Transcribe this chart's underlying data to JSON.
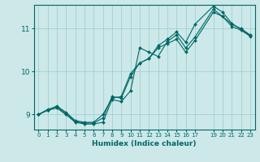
{
  "xlabel": "Humidex (Indice chaleur)",
  "ylabel": "",
  "bg_color": "#cce8e8",
  "line_color": "#006666",
  "grid_color": "#99cccc",
  "xlim": [
    -0.5,
    23.5
  ],
  "ylim": [
    8.65,
    11.55
  ],
  "yticks": [
    9,
    10,
    11
  ],
  "xticks": [
    0,
    1,
    2,
    3,
    4,
    5,
    6,
    7,
    8,
    9,
    10,
    11,
    12,
    13,
    14,
    15,
    16,
    17,
    19,
    20,
    21,
    22,
    23
  ],
  "series": [
    {
      "x": [
        0,
        1,
        2,
        3,
        4,
        5,
        6,
        7,
        8,
        9,
        10,
        11,
        12,
        13,
        14,
        15,
        16,
        17,
        19,
        20,
        21,
        22,
        23
      ],
      "y": [
        9.0,
        9.1,
        9.15,
        9.0,
        8.82,
        8.78,
        8.78,
        8.82,
        9.35,
        9.3,
        9.55,
        10.55,
        10.45,
        10.35,
        10.7,
        10.85,
        10.55,
        10.8,
        11.45,
        11.28,
        11.1,
        11.0,
        10.85
      ]
    },
    {
      "x": [
        0,
        1,
        2,
        3,
        4,
        5,
        6,
        7,
        8,
        9,
        10,
        11,
        12,
        13,
        14,
        15,
        16,
        17,
        19,
        20,
        21,
        22,
        23
      ],
      "y": [
        9.0,
        9.12,
        9.18,
        9.02,
        8.84,
        8.8,
        8.8,
        8.92,
        9.42,
        9.38,
        9.88,
        10.2,
        10.3,
        10.6,
        10.75,
        10.92,
        10.68,
        11.1,
        11.52,
        11.38,
        11.12,
        10.98,
        10.84
      ]
    },
    {
      "x": [
        0,
        1,
        2,
        3,
        4,
        5,
        6,
        7,
        8,
        9,
        10,
        11,
        12,
        13,
        14,
        15,
        16,
        17,
        19,
        20,
        21,
        22,
        23
      ],
      "y": [
        9.0,
        9.1,
        9.2,
        9.05,
        8.86,
        8.82,
        8.82,
        9.0,
        9.38,
        9.42,
        9.95,
        10.2,
        10.3,
        10.55,
        10.65,
        10.75,
        10.45,
        10.72,
        11.38,
        11.28,
        11.05,
        10.96,
        10.82
      ]
    }
  ]
}
